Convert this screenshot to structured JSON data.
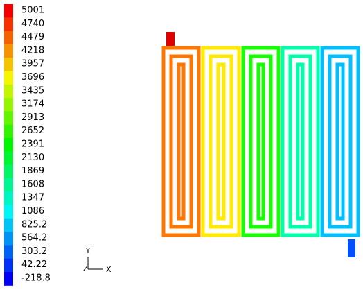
{
  "colorbar": {
    "labels": [
      "5001",
      "4740",
      "4479",
      "4218",
      "3957",
      "3696",
      "3435",
      "3174",
      "2913",
      "2652",
      "2391",
      "2130",
      "1869",
      "1608",
      "1347",
      "1086",
      "825.2",
      "564.2",
      "303.2",
      "42.22",
      "-218.8"
    ]
  },
  "triad": {
    "y": "Y",
    "z": "Z",
    "x": "X"
  }
}
